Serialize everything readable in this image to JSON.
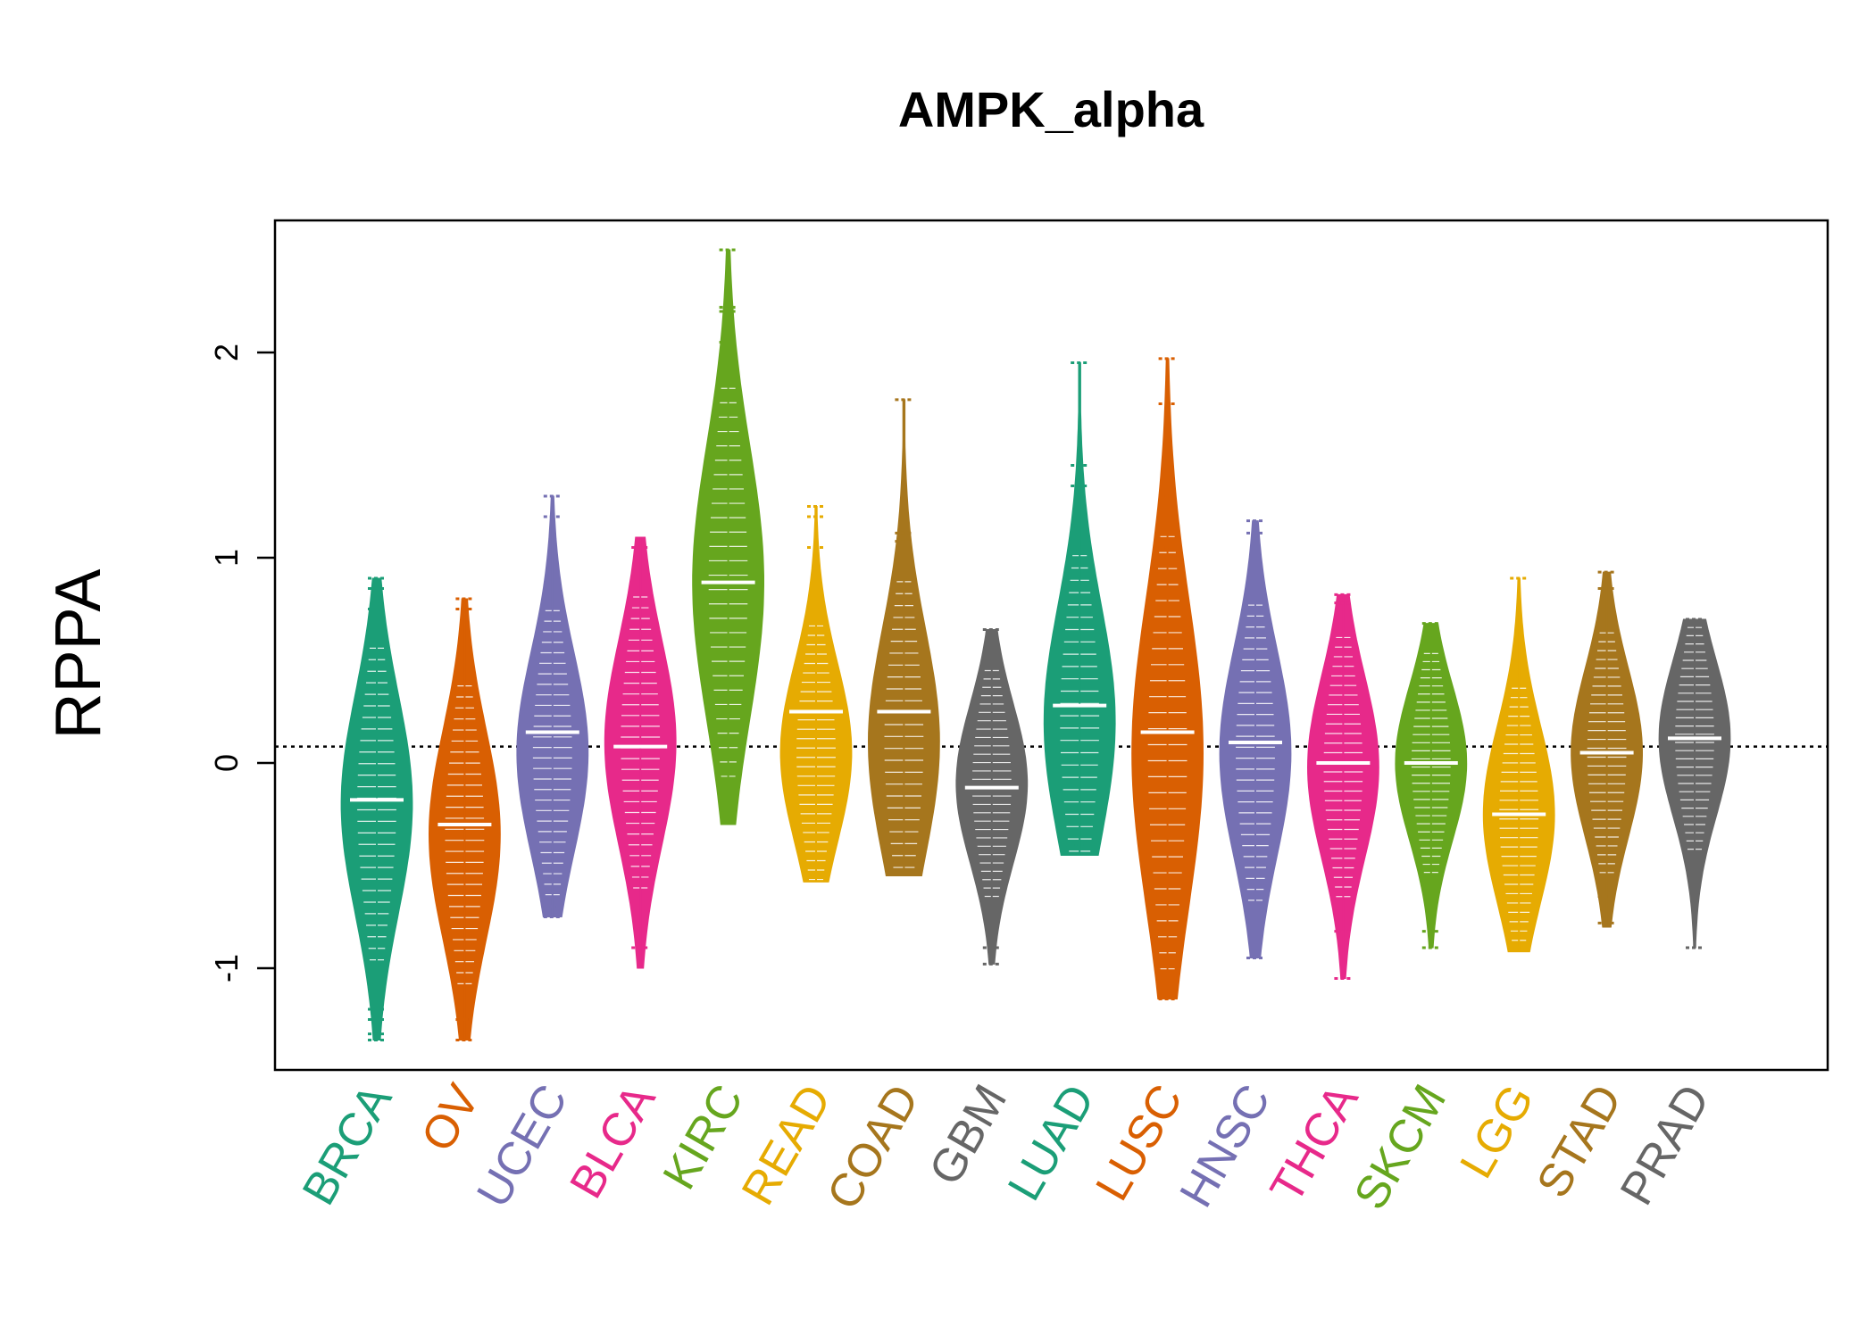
{
  "chart_data": {
    "type": "beanplot",
    "title": "AMPK_alpha",
    "ylabel": "RPPA",
    "xlabel": "",
    "ylim": [
      -1.5,
      2.6
    ],
    "yticks": [
      -1,
      0,
      1,
      2
    ],
    "reference_line": 0.08,
    "categories": [
      "BRCA",
      "OV",
      "UCEC",
      "BLCA",
      "KIRC",
      "READ",
      "COAD",
      "GBM",
      "LUAD",
      "LUSC",
      "HNSC",
      "THCA",
      "SKCM",
      "LGG",
      "STAD",
      "PRAD"
    ],
    "colors": [
      "#1B9E77",
      "#D95F02",
      "#7570B3",
      "#E7298A",
      "#66A61E",
      "#E6AB02",
      "#A6761D",
      "#666666",
      "#1B9E77",
      "#D95F02",
      "#7570B3",
      "#E7298A",
      "#66A61E",
      "#E6AB02",
      "#A6761D",
      "#666666"
    ],
    "series": [
      {
        "category": "BRCA",
        "median": -0.18,
        "peak": -0.2,
        "min": -1.35,
        "max": 0.9,
        "outliers": [
          0.9,
          0.85,
          0.75,
          0.7,
          -1.2,
          -1.25,
          -1.32,
          -1.35
        ]
      },
      {
        "category": "OV",
        "median": -0.3,
        "peak": -0.35,
        "min": -1.35,
        "max": 0.8,
        "outliers": [
          0.8,
          0.75,
          -1.25,
          -1.35
        ]
      },
      {
        "category": "UCEC",
        "median": 0.15,
        "peak": 0.05,
        "min": -0.75,
        "max": 1.3,
        "outliers": [
          1.3,
          1.2,
          -0.7,
          -0.75
        ]
      },
      {
        "category": "BLCA",
        "median": 0.08,
        "peak": 0.1,
        "min": -1.0,
        "max": 1.1,
        "outliers": [
          1.05,
          -0.9
        ]
      },
      {
        "category": "KIRC",
        "median": 0.88,
        "peak": 0.88,
        "min": -0.3,
        "max": 2.5,
        "outliers": [
          2.5,
          2.22,
          2.2,
          2.05,
          1.9
        ]
      },
      {
        "category": "READ",
        "median": 0.25,
        "peak": 0.05,
        "min": -0.58,
        "max": 1.25,
        "outliers": [
          1.25,
          1.2,
          1.05,
          -0.55
        ]
      },
      {
        "category": "COAD",
        "median": 0.25,
        "peak": 0.1,
        "min": -0.55,
        "max": 1.77,
        "outliers": [
          1.77,
          1.12,
          1.08,
          -0.52
        ]
      },
      {
        "category": "GBM",
        "median": -0.12,
        "peak": -0.1,
        "min": -0.98,
        "max": 0.65,
        "outliers": [
          0.65,
          -0.9,
          -0.98
        ]
      },
      {
        "category": "LUAD",
        "median": 0.28,
        "peak": 0.2,
        "min": -0.45,
        "max": 1.95,
        "outliers": [
          1.95,
          1.45,
          1.35,
          1.15,
          -0.4
        ]
      },
      {
        "category": "LUSC",
        "median": 0.15,
        "peak": 0.05,
        "min": -1.15,
        "max": 1.97,
        "outliers": [
          1.97,
          1.75,
          1.3,
          1.05,
          -1.15
        ]
      },
      {
        "category": "HNSC",
        "median": 0.1,
        "peak": 0.05,
        "min": -0.95,
        "max": 1.18,
        "outliers": [
          1.18,
          1.12,
          -0.7,
          -0.95
        ]
      },
      {
        "category": "THCA",
        "median": 0.0,
        "peak": -0.02,
        "min": -1.05,
        "max": 0.82,
        "outliers": [
          0.82,
          0.78,
          -0.82,
          -1.05
        ]
      },
      {
        "category": "SKCM",
        "median": 0.0,
        "peak": 0.0,
        "min": -0.9,
        "max": 0.68,
        "outliers": [
          0.68,
          0.62,
          -0.82,
          -0.9
        ]
      },
      {
        "category": "LGG",
        "median": -0.25,
        "peak": -0.25,
        "min": -0.92,
        "max": 0.9,
        "outliers": [
          0.9,
          0.35,
          -0.8,
          -0.9
        ]
      },
      {
        "category": "STAD",
        "median": 0.05,
        "peak": 0.05,
        "min": -0.8,
        "max": 0.93,
        "outliers": [
          0.93,
          0.85,
          -0.65,
          -0.78
        ]
      },
      {
        "category": "PRAD",
        "median": 0.12,
        "peak": 0.12,
        "min": -0.9,
        "max": 0.7,
        "outliers": [
          0.7,
          0.55,
          -0.9
        ]
      }
    ]
  }
}
